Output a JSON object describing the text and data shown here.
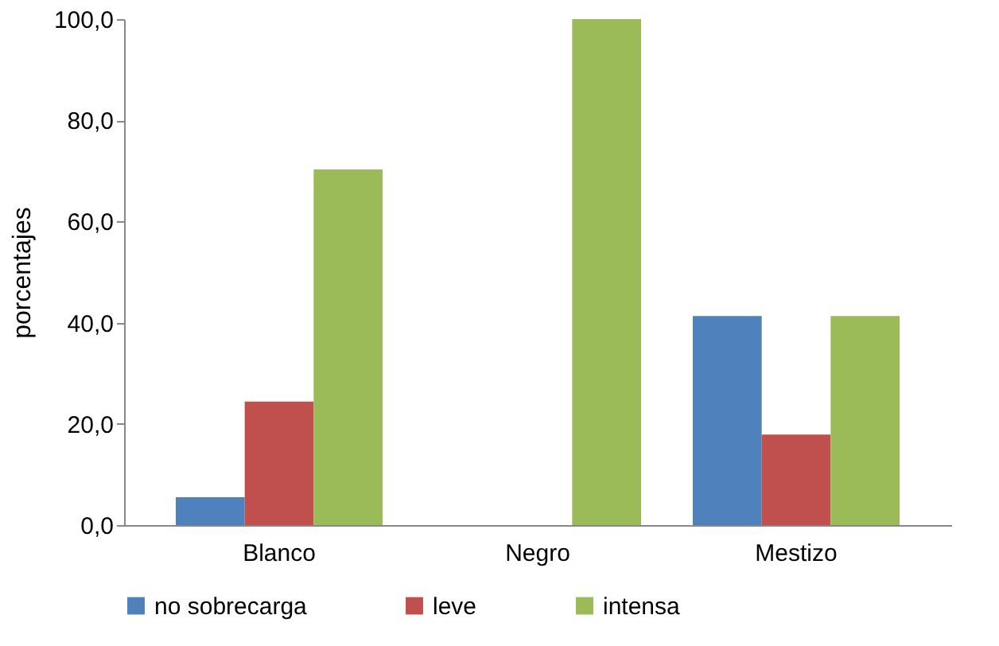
{
  "chart_data": {
    "type": "bar",
    "ylabel": "porcentajes",
    "categories": [
      "Blanco",
      "Negro",
      "Mestizo"
    ],
    "series": [
      {
        "name": "no sobrecarga",
        "color": "#4f81bd",
        "values": [
          5.5,
          0,
          41.3
        ]
      },
      {
        "name": "leve",
        "color": "#c0504d",
        "values": [
          24.4,
          0,
          17.9
        ]
      },
      {
        "name": "intensa",
        "color": "#9bbb59",
        "values": [
          70.3,
          100,
          41.3
        ]
      }
    ],
    "ylim": [
      0,
      100
    ],
    "yticks": [
      {
        "value": 0,
        "label": "0,0"
      },
      {
        "value": 20,
        "label": "20,0"
      },
      {
        "value": 40,
        "label": "40,0"
      },
      {
        "value": 60,
        "label": "60,0"
      },
      {
        "value": 80,
        "label": "80,0"
      },
      {
        "value": 100,
        "label": "100,0"
      }
    ],
    "grid": false,
    "legend": "bottom"
  }
}
